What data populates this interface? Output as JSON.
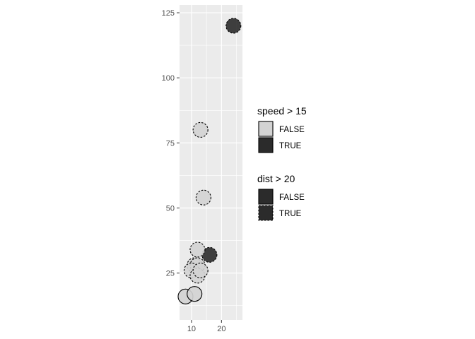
{
  "chart_data": {
    "type": "scatter",
    "xlim": [
      6,
      27
    ],
    "ylim": [
      7,
      128
    ],
    "x_ticks": [
      10,
      20
    ],
    "y_ticks": [
      25,
      50,
      75,
      100,
      125
    ],
    "grid": true,
    "legend_placement": "right",
    "colors": {
      "panel": "#ebebeb",
      "grid": "#ffffff",
      "true_fill": "#2b2b2b",
      "false_fill": "#d3d3d3",
      "stroke": "#000000"
    },
    "points": [
      {
        "x": 24,
        "y": 120,
        "speed_gt_15": true,
        "dist_gt_20": true
      },
      {
        "x": 13,
        "y": 80,
        "speed_gt_15": false,
        "dist_gt_20": true
      },
      {
        "x": 14,
        "y": 54,
        "speed_gt_15": false,
        "dist_gt_20": true
      },
      {
        "x": 16,
        "y": 32,
        "speed_gt_15": true,
        "dist_gt_20": true
      },
      {
        "x": 12,
        "y": 34,
        "speed_gt_15": false,
        "dist_gt_20": true
      },
      {
        "x": 11,
        "y": 28,
        "speed_gt_15": false,
        "dist_gt_20": true
      },
      {
        "x": 12,
        "y": 28,
        "speed_gt_15": false,
        "dist_gt_20": true
      },
      {
        "x": 10,
        "y": 26,
        "speed_gt_15": false,
        "dist_gt_20": true
      },
      {
        "x": 12,
        "y": 24,
        "speed_gt_15": false,
        "dist_gt_20": true
      },
      {
        "x": 13,
        "y": 26,
        "speed_gt_15": false,
        "dist_gt_20": true
      },
      {
        "x": 8,
        "y": 16,
        "speed_gt_15": false,
        "dist_gt_20": false
      },
      {
        "x": 11,
        "y": 17,
        "speed_gt_15": false,
        "dist_gt_20": false
      }
    ],
    "legends": [
      {
        "title": "speed > 15",
        "items": [
          {
            "label": "FALSE",
            "fill": "#d3d3d3",
            "dashed": false
          },
          {
            "label": "TRUE",
            "fill": "#2b2b2b",
            "dashed": false
          }
        ]
      },
      {
        "title": "dist > 20",
        "items": [
          {
            "label": "FALSE",
            "fill": "#2b2b2b",
            "dashed": false
          },
          {
            "label": "TRUE",
            "fill": "#2b2b2b",
            "dashed": true
          }
        ]
      }
    ]
  }
}
